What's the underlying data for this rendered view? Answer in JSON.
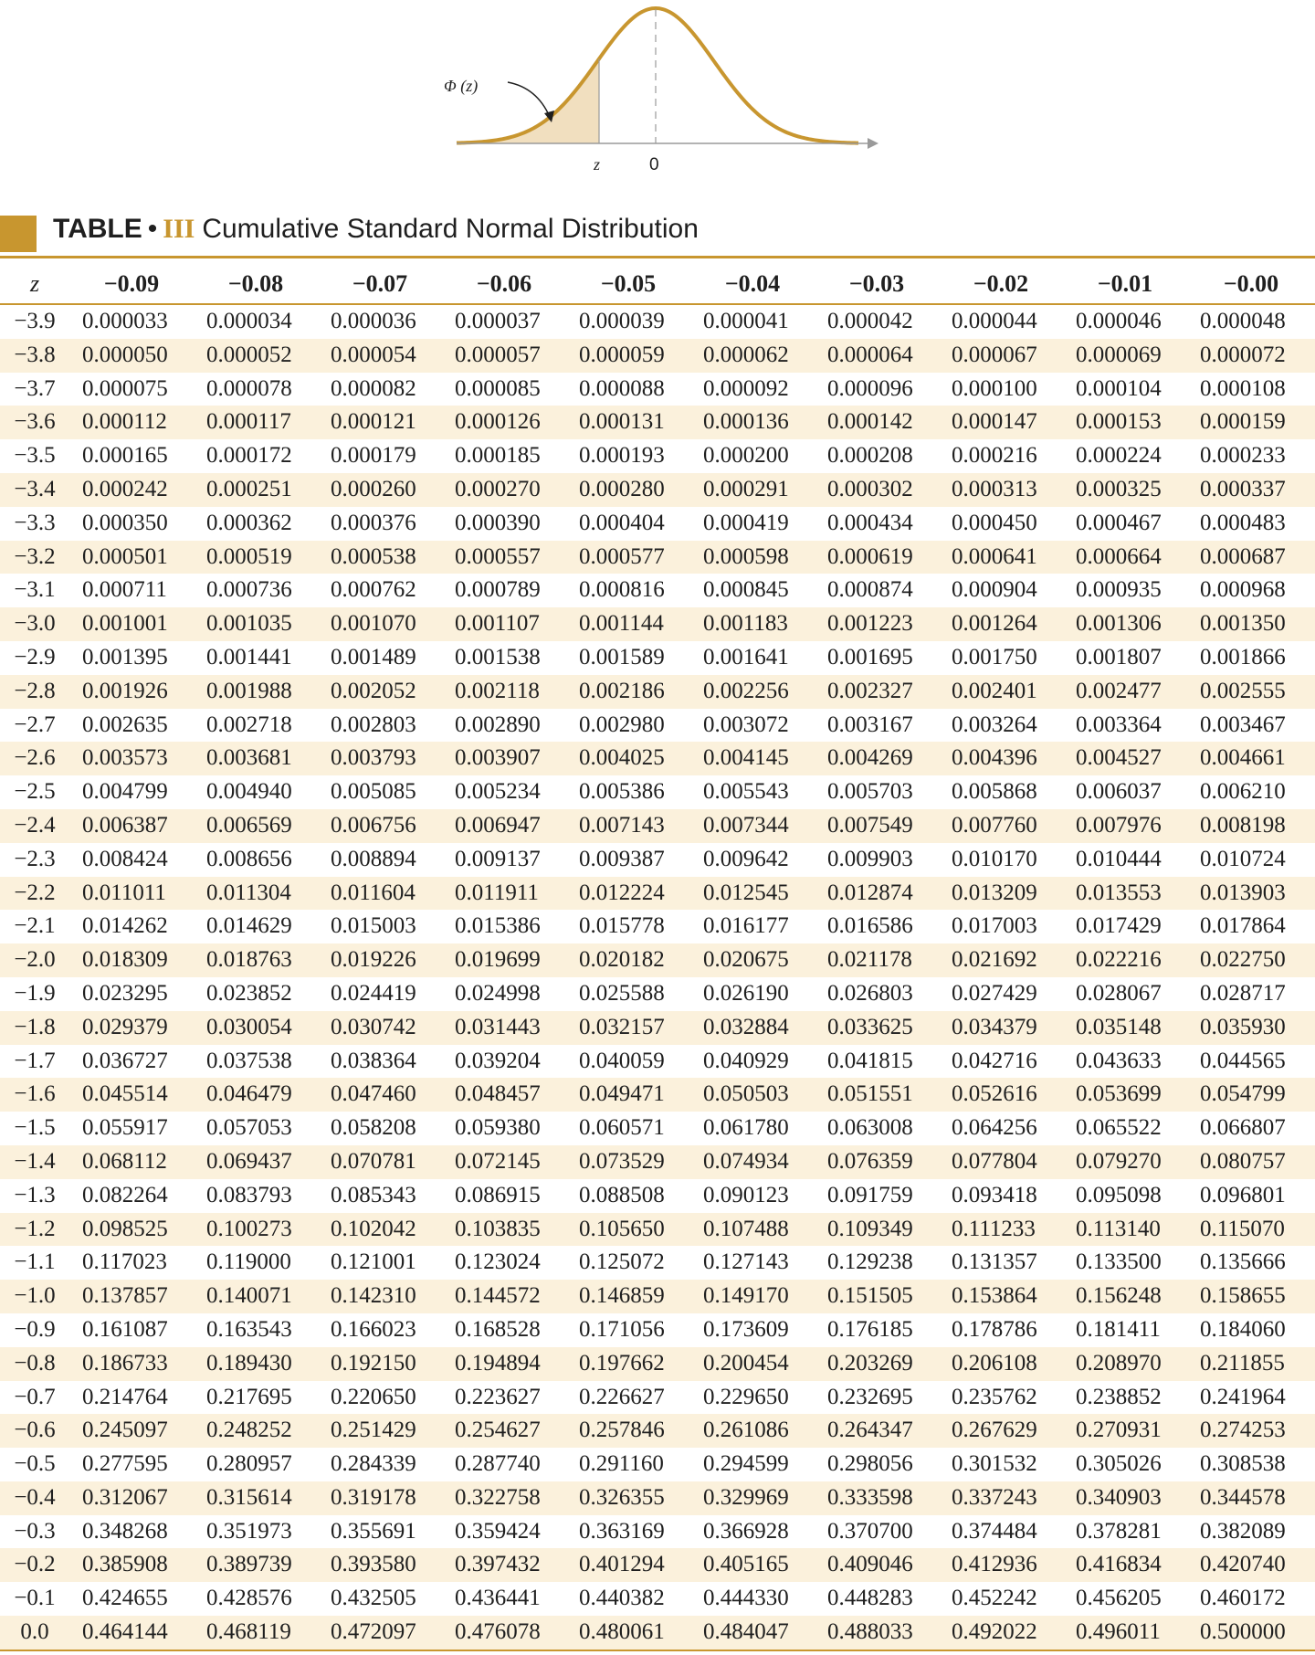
{
  "figure": {
    "phi_label": "Φ (z)",
    "z_label": "z",
    "zero_label": "0",
    "colors": {
      "curve": "#c8962f",
      "fill": "#f1dfbf",
      "axis": "#9a9a9a"
    }
  },
  "title": {
    "table_word": "TABLE",
    "bullet": "•",
    "number": "III",
    "text": "Cumulative Standard Normal Distribution"
  },
  "table": {
    "columns": [
      "z",
      "−0.09",
      "−0.08",
      "−0.07",
      "−0.06",
      "−0.05",
      "−0.04",
      "−0.03",
      "−0.02",
      "−0.01",
      "−0.00"
    ],
    "rows": [
      [
        "−3.9",
        "0.000033",
        "0.000034",
        "0.000036",
        "0.000037",
        "0.000039",
        "0.000041",
        "0.000042",
        "0.000044",
        "0.000046",
        "0.000048"
      ],
      [
        "−3.8",
        "0.000050",
        "0.000052",
        "0.000054",
        "0.000057",
        "0.000059",
        "0.000062",
        "0.000064",
        "0.000067",
        "0.000069",
        "0.000072"
      ],
      [
        "−3.7",
        "0.000075",
        "0.000078",
        "0.000082",
        "0.000085",
        "0.000088",
        "0.000092",
        "0.000096",
        "0.000100",
        "0.000104",
        "0.000108"
      ],
      [
        "−3.6",
        "0.000112",
        "0.000117",
        "0.000121",
        "0.000126",
        "0.000131",
        "0.000136",
        "0.000142",
        "0.000147",
        "0.000153",
        "0.000159"
      ],
      [
        "−3.5",
        "0.000165",
        "0.000172",
        "0.000179",
        "0.000185",
        "0.000193",
        "0.000200",
        "0.000208",
        "0.000216",
        "0.000224",
        "0.000233"
      ],
      [
        "−3.4",
        "0.000242",
        "0.000251",
        "0.000260",
        "0.000270",
        "0.000280",
        "0.000291",
        "0.000302",
        "0.000313",
        "0.000325",
        "0.000337"
      ],
      [
        "−3.3",
        "0.000350",
        "0.000362",
        "0.000376",
        "0.000390",
        "0.000404",
        "0.000419",
        "0.000434",
        "0.000450",
        "0.000467",
        "0.000483"
      ],
      [
        "−3.2",
        "0.000501",
        "0.000519",
        "0.000538",
        "0.000557",
        "0.000577",
        "0.000598",
        "0.000619",
        "0.000641",
        "0.000664",
        "0.000687"
      ],
      [
        "−3.1",
        "0.000711",
        "0.000736",
        "0.000762",
        "0.000789",
        "0.000816",
        "0.000845",
        "0.000874",
        "0.000904",
        "0.000935",
        "0.000968"
      ],
      [
        "−3.0",
        "0.001001",
        "0.001035",
        "0.001070",
        "0.001107",
        "0.001144",
        "0.001183",
        "0.001223",
        "0.001264",
        "0.001306",
        "0.001350"
      ],
      [
        "−2.9",
        "0.001395",
        "0.001441",
        "0.001489",
        "0.001538",
        "0.001589",
        "0.001641",
        "0.001695",
        "0.001750",
        "0.001807",
        "0.001866"
      ],
      [
        "−2.8",
        "0.001926",
        "0.001988",
        "0.002052",
        "0.002118",
        "0.002186",
        "0.002256",
        "0.002327",
        "0.002401",
        "0.002477",
        "0.002555"
      ],
      [
        "−2.7",
        "0.002635",
        "0.002718",
        "0.002803",
        "0.002890",
        "0.002980",
        "0.003072",
        "0.003167",
        "0.003264",
        "0.003364",
        "0.003467"
      ],
      [
        "−2.6",
        "0.003573",
        "0.003681",
        "0.003793",
        "0.003907",
        "0.004025",
        "0.004145",
        "0.004269",
        "0.004396",
        "0.004527",
        "0.004661"
      ],
      [
        "−2.5",
        "0.004799",
        "0.004940",
        "0.005085",
        "0.005234",
        "0.005386",
        "0.005543",
        "0.005703",
        "0.005868",
        "0.006037",
        "0.006210"
      ],
      [
        "−2.4",
        "0.006387",
        "0.006569",
        "0.006756",
        "0.006947",
        "0.007143",
        "0.007344",
        "0.007549",
        "0.007760",
        "0.007976",
        "0.008198"
      ],
      [
        "−2.3",
        "0.008424",
        "0.008656",
        "0.008894",
        "0.009137",
        "0.009387",
        "0.009642",
        "0.009903",
        "0.010170",
        "0.010444",
        "0.010724"
      ],
      [
        "−2.2",
        "0.011011",
        "0.011304",
        "0.011604",
        "0.011911",
        "0.012224",
        "0.012545",
        "0.012874",
        "0.013209",
        "0.013553",
        "0.013903"
      ],
      [
        "−2.1",
        "0.014262",
        "0.014629",
        "0.015003",
        "0.015386",
        "0.015778",
        "0.016177",
        "0.016586",
        "0.017003",
        "0.017429",
        "0.017864"
      ],
      [
        "−2.0",
        "0.018309",
        "0.018763",
        "0.019226",
        "0.019699",
        "0.020182",
        "0.020675",
        "0.021178",
        "0.021692",
        "0.022216",
        "0.022750"
      ],
      [
        "−1.9",
        "0.023295",
        "0.023852",
        "0.024419",
        "0.024998",
        "0.025588",
        "0.026190",
        "0.026803",
        "0.027429",
        "0.028067",
        "0.028717"
      ],
      [
        "−1.8",
        "0.029379",
        "0.030054",
        "0.030742",
        "0.031443",
        "0.032157",
        "0.032884",
        "0.033625",
        "0.034379",
        "0.035148",
        "0.035930"
      ],
      [
        "−1.7",
        "0.036727",
        "0.037538",
        "0.038364",
        "0.039204",
        "0.040059",
        "0.040929",
        "0.041815",
        "0.042716",
        "0.043633",
        "0.044565"
      ],
      [
        "−1.6",
        "0.045514",
        "0.046479",
        "0.047460",
        "0.048457",
        "0.049471",
        "0.050503",
        "0.051551",
        "0.052616",
        "0.053699",
        "0.054799"
      ],
      [
        "−1.5",
        "0.055917",
        "0.057053",
        "0.058208",
        "0.059380",
        "0.060571",
        "0.061780",
        "0.063008",
        "0.064256",
        "0.065522",
        "0.066807"
      ],
      [
        "−1.4",
        "0.068112",
        "0.069437",
        "0.070781",
        "0.072145",
        "0.073529",
        "0.074934",
        "0.076359",
        "0.077804",
        "0.079270",
        "0.080757"
      ],
      [
        "−1.3",
        "0.082264",
        "0.083793",
        "0.085343",
        "0.086915",
        "0.088508",
        "0.090123",
        "0.091759",
        "0.093418",
        "0.095098",
        "0.096801"
      ],
      [
        "−1.2",
        "0.098525",
        "0.100273",
        "0.102042",
        "0.103835",
        "0.105650",
        "0.107488",
        "0.109349",
        "0.111233",
        "0.113140",
        "0.115070"
      ],
      [
        "−1.1",
        "0.117023",
        "0.119000",
        "0.121001",
        "0.123024",
        "0.125072",
        "0.127143",
        "0.129238",
        "0.131357",
        "0.133500",
        "0.135666"
      ],
      [
        "−1.0",
        "0.137857",
        "0.140071",
        "0.142310",
        "0.144572",
        "0.146859",
        "0.149170",
        "0.151505",
        "0.153864",
        "0.156248",
        "0.158655"
      ],
      [
        "−0.9",
        "0.161087",
        "0.163543",
        "0.166023",
        "0.168528",
        "0.171056",
        "0.173609",
        "0.176185",
        "0.178786",
        "0.181411",
        "0.184060"
      ],
      [
        "−0.8",
        "0.186733",
        "0.189430",
        "0.192150",
        "0.194894",
        "0.197662",
        "0.200454",
        "0.203269",
        "0.206108",
        "0.208970",
        "0.211855"
      ],
      [
        "−0.7",
        "0.214764",
        "0.217695",
        "0.220650",
        "0.223627",
        "0.226627",
        "0.229650",
        "0.232695",
        "0.235762",
        "0.238852",
        "0.241964"
      ],
      [
        "−0.6",
        "0.245097",
        "0.248252",
        "0.251429",
        "0.254627",
        "0.257846",
        "0.261086",
        "0.264347",
        "0.267629",
        "0.270931",
        "0.274253"
      ],
      [
        "−0.5",
        "0.277595",
        "0.280957",
        "0.284339",
        "0.287740",
        "0.291160",
        "0.294599",
        "0.298056",
        "0.301532",
        "0.305026",
        "0.308538"
      ],
      [
        "−0.4",
        "0.312067",
        "0.315614",
        "0.319178",
        "0.322758",
        "0.326355",
        "0.329969",
        "0.333598",
        "0.337243",
        "0.340903",
        "0.344578"
      ],
      [
        "−0.3",
        "0.348268",
        "0.351973",
        "0.355691",
        "0.359424",
        "0.363169",
        "0.366928",
        "0.370700",
        "0.374484",
        "0.378281",
        "0.382089"
      ],
      [
        "−0.2",
        "0.385908",
        "0.389739",
        "0.393580",
        "0.397432",
        "0.401294",
        "0.405165",
        "0.409046",
        "0.412936",
        "0.416834",
        "0.420740"
      ],
      [
        "−0.1",
        "0.424655",
        "0.428576",
        "0.432505",
        "0.436441",
        "0.440382",
        "0.444330",
        "0.448283",
        "0.452242",
        "0.456205",
        "0.460172"
      ],
      [
        "0.0",
        "0.464144",
        "0.468119",
        "0.472097",
        "0.476078",
        "0.480061",
        "0.484047",
        "0.488033",
        "0.492022",
        "0.496011",
        "0.500000"
      ]
    ]
  }
}
